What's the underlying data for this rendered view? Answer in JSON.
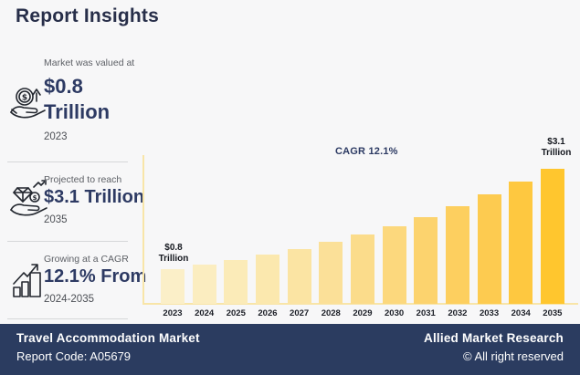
{
  "title": "Report Insights",
  "stats": [
    {
      "icon": "hand-coin-arrow-icon",
      "label": "Market was valued at",
      "value_lines": [
        "$0.8",
        "Trillion"
      ],
      "period": "2023"
    },
    {
      "icon": "hand-diamond-arrow-icon",
      "label": "Projected to reach",
      "value_lines": [
        "$3.1 Trillion"
      ],
      "period": "2035"
    },
    {
      "icon": "growth-bars-arrow-icon",
      "label": "Growing at a CAGR",
      "value_lines": [
        "12.1% From"
      ],
      "period": "2024-2035"
    }
  ],
  "chart_data": {
    "type": "bar",
    "categories": [
      "2023",
      "2024",
      "2025",
      "2026",
      "2027",
      "2028",
      "2029",
      "2030",
      "2031",
      "2032",
      "2033",
      "2034",
      "2035"
    ],
    "values": [
      0.8,
      0.9,
      1.0,
      1.13,
      1.26,
      1.42,
      1.59,
      1.78,
      2.0,
      2.24,
      2.51,
      2.81,
      3.1
    ],
    "value_unit": "$ Trillion",
    "ylim": [
      0,
      3.1
    ],
    "grid": false,
    "legend": false,
    "annotation": "CAGR 12.1%",
    "first_bar_label": [
      "$0.8",
      "Trillion"
    ],
    "last_bar_label": [
      "$3.1",
      "Trillion"
    ],
    "bar_colors": [
      "#FBEFC8",
      "#FBEDC0",
      "#FBEBB8",
      "#FBE8AE",
      "#FBE4A3",
      "#FBE098",
      "#FBDC8B",
      "#FCD87D",
      "#FCD36E",
      "#FDCF5F",
      "#FDCB50",
      "#FEC840",
      "#FFC62E"
    ]
  },
  "footer": {
    "market": "Travel Accommodation Market",
    "report_code": "Report Code: A05679",
    "brand": "Allied Market Research",
    "copyright": "© All right reserved"
  },
  "colors": {
    "title_navy": "#272e49",
    "value_navy": "#2d3a63",
    "footer_bg": "#2b3c60",
    "axis_yellow": "#f8e5a8",
    "accent_yellow": "#ffc62e"
  }
}
